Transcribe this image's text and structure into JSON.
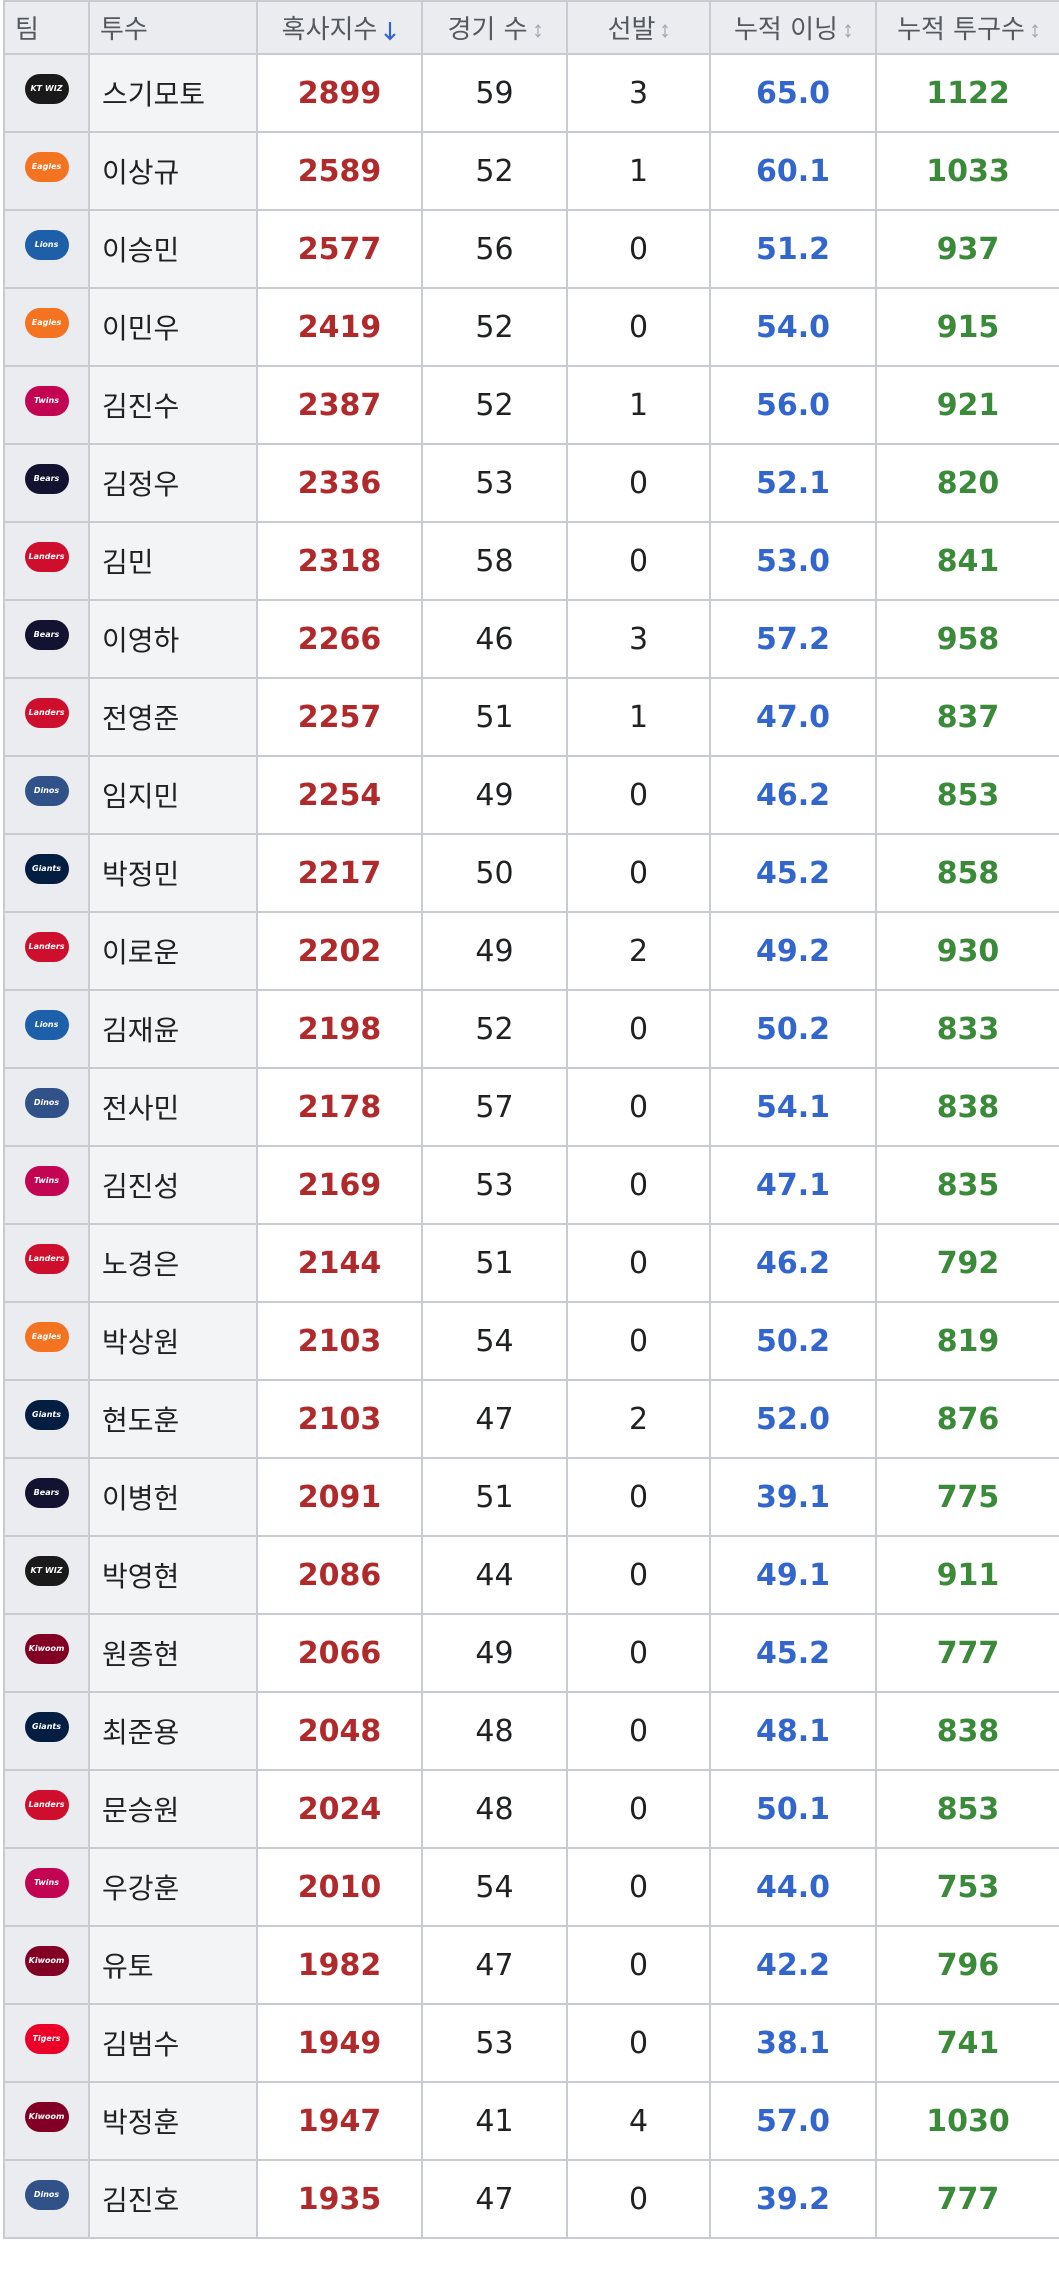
{
  "header": {
    "columns": [
      "팀",
      "투수",
      "혹사지수",
      "경기 수",
      "선발",
      "누적 이닝",
      "누적 투구수"
    ]
  },
  "table": {
    "rows": [
      [
        "KT WIZ",
        "스기모토",
        "2899",
        "59",
        "3",
        "65.0",
        "1122"
      ],
      [
        "Eagles",
        "이상규",
        "2589",
        "52",
        "1",
        "60.1",
        "1033"
      ],
      [
        "Lions",
        "이승민",
        "2577",
        "56",
        "0",
        "51.2",
        "937"
      ],
      [
        "Eagles",
        "이민우",
        "2419",
        "52",
        "0",
        "54.0",
        "915"
      ],
      [
        "Twins",
        "김진수",
        "2387",
        "52",
        "1",
        "56.0",
        "921"
      ],
      [
        "Bears",
        "김정우",
        "2336",
        "53",
        "0",
        "52.1",
        "820"
      ],
      [
        "Landers",
        "김민",
        "2318",
        "58",
        "0",
        "53.0",
        "841"
      ],
      [
        "Bears",
        "이영하",
        "2266",
        "46",
        "3",
        "57.2",
        "958"
      ],
      [
        "Landers",
        "전영준",
        "2257",
        "51",
        "1",
        "47.0",
        "837"
      ],
      [
        "Dinos",
        "임지민",
        "2254",
        "49",
        "0",
        "46.2",
        "853"
      ],
      [
        "Giants",
        "박정민",
        "2217",
        "50",
        "0",
        "45.2",
        "858"
      ],
      [
        "Landers",
        "이로운",
        "2202",
        "49",
        "2",
        "49.2",
        "930"
      ],
      [
        "Lions",
        "김재윤",
        "2198",
        "52",
        "0",
        "50.2",
        "833"
      ],
      [
        "Dinos",
        "전사민",
        "2178",
        "57",
        "0",
        "54.1",
        "838"
      ],
      [
        "Twins",
        "김진성",
        "2169",
        "53",
        "0",
        "47.1",
        "835"
      ],
      [
        "Landers",
        "노경은",
        "2144",
        "51",
        "0",
        "46.2",
        "792"
      ],
      [
        "Eagles",
        "박상원",
        "2103",
        "54",
        "0",
        "50.2",
        "819"
      ],
      [
        "Giants",
        "현도훈",
        "2103",
        "47",
        "2",
        "52.0",
        "876"
      ],
      [
        "Bears",
        "이병헌",
        "2091",
        "51",
        "0",
        "39.1",
        "775"
      ],
      [
        "KT WIZ",
        "박영현",
        "2086",
        "44",
        "0",
        "49.1",
        "911"
      ],
      [
        "Kiwoom",
        "원종현",
        "2066",
        "49",
        "0",
        "45.2",
        "777"
      ],
      [
        "Giants",
        "최준용",
        "2048",
        "48",
        "0",
        "48.1",
        "838"
      ],
      [
        "Landers",
        "문승원",
        "2024",
        "48",
        "0",
        "50.1",
        "853"
      ],
      [
        "Twins",
        "우강훈",
        "2010",
        "54",
        "0",
        "44.0",
        "753"
      ],
      [
        "Kiwoom",
        "유토",
        "1982",
        "47",
        "0",
        "42.2",
        "796"
      ],
      [
        "Tigers",
        "김범수",
        "1949",
        "53",
        "0",
        "38.1",
        "741"
      ],
      [
        "Kiwoom",
        "박정훈",
        "1947",
        "41",
        "4",
        "57.0",
        "1030"
      ],
      [
        "Dinos",
        "김진호",
        "1935",
        "47",
        "0",
        "39.2",
        "777"
      ]
    ]
  }
}
